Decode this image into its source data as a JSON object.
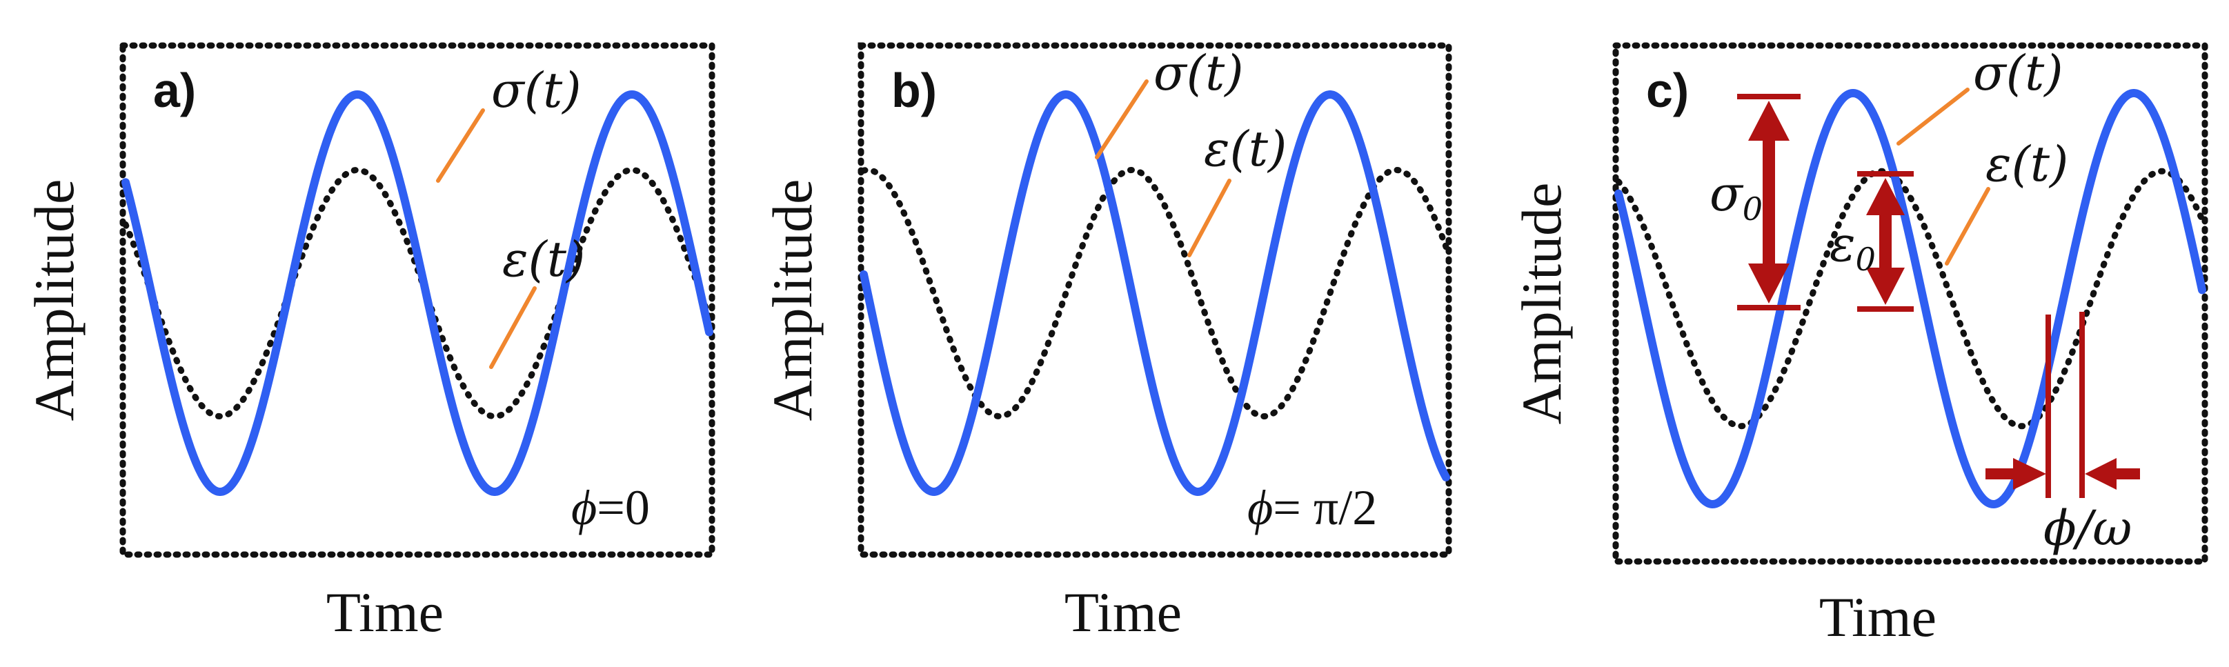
{
  "panels": [
    {
      "label": "a)",
      "xlabel": "Time",
      "ylabel": "Amplitude",
      "stress_label": "σ(t)",
      "strain_label": "ε(t)",
      "phase_symbol": "ϕ",
      "phase_value": "=0",
      "phase_lag_cycles": 0,
      "stress_amplitude_ratio": 1.0,
      "strain_amplitude_ratio": 0.62
    },
    {
      "label": "b)",
      "xlabel": "Time",
      "ylabel": "Amplitude",
      "stress_label": "σ(t)",
      "strain_label": "ε(t)",
      "phase_symbol": "ϕ",
      "phase_value": "= π/2",
      "phase_lag_cycles": 0.25,
      "stress_amplitude_ratio": 1.0,
      "strain_amplitude_ratio": 0.62
    },
    {
      "label": "c)",
      "xlabel": "Time",
      "ylabel": "Amplitude",
      "stress_label": "σ(t)",
      "strain_label": "ε(t)",
      "stress_amp_label": "σ",
      "stress_amp_sub": "0",
      "strain_amp_label": "ε",
      "strain_amp_sub": "0",
      "phase_shift_label_phi": "ϕ",
      "phase_shift_label_rest": "/ω",
      "phase_lag_cycles": 0.1,
      "stress_amplitude_ratio": 1.0,
      "strain_amplitude_ratio": 0.62
    }
  ],
  "colors": {
    "stress": "#2f5ff2",
    "strain": "#111111",
    "leader": "#f0862e",
    "annotation": "#b01212"
  }
}
